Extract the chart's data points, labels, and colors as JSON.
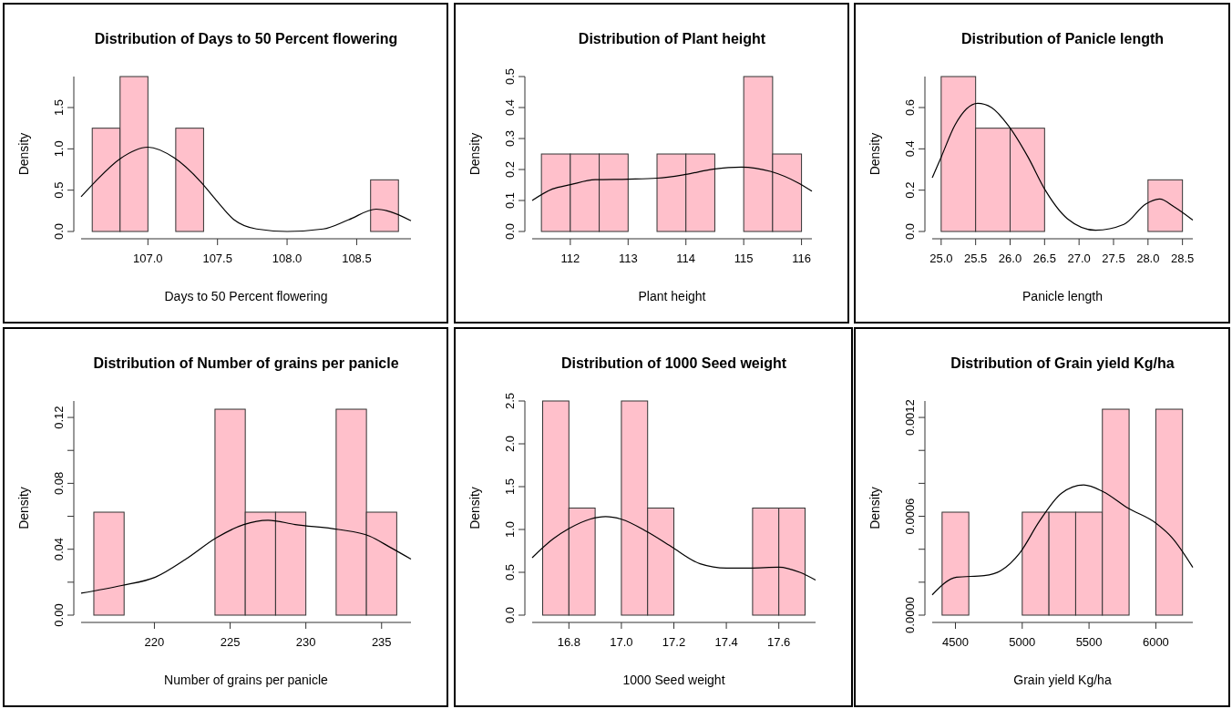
{
  "chart_data": [
    {
      "type": "histogram",
      "title": "Distribution of Days to 50 Percent flowering",
      "xlabel": "Days to 50 Percent flowering",
      "ylabel": "Density",
      "bins": [
        106.6,
        106.8,
        107.0,
        107.2,
        107.4,
        107.6,
        107.8,
        108.0,
        108.2,
        108.4,
        108.6,
        108.8
      ],
      "xlim": [
        106.52,
        108.89
      ],
      "ylim": [
        0,
        1.875
      ],
      "xticks": [
        {
          "value": 107,
          "label": "107.0"
        },
        107.5,
        {
          "value": 108,
          "label": "108.0"
        },
        108.5
      ],
      "yticks": [
        {
          "value": 0,
          "label": "0.0"
        },
        0.5,
        {
          "value": 1,
          "label": "1.0"
        },
        1.5
      ],
      "series": [
        {
          "color": "#ffc0cb",
          "values": [
            1.25,
            1.875,
            0,
            1.25,
            0,
            0,
            0,
            0,
            0,
            0,
            0.625
          ]
        },
        {
          "type": "line",
          "color": "#000000",
          "x": [
            106.52,
            106.62,
            106.8,
            107.0,
            107.19,
            107.38,
            107.49,
            107.62,
            107.78,
            108.0,
            108.26,
            108.44,
            108.64,
            108.72,
            108.89
          ],
          "values": [
            0.42,
            0.6,
            0.88,
            1.02,
            0.89,
            0.6,
            0.38,
            0.14,
            0.03,
            0.0,
            0.03,
            0.14,
            0.27,
            0.25,
            0.13
          ]
        }
      ]
    },
    {
      "type": "histogram",
      "title": "Distribution of Plant height",
      "xlabel": "Plant height",
      "ylabel": "Density",
      "bins": [
        111.5,
        112,
        112.5,
        113,
        113.5,
        114,
        114.5,
        115,
        115.5,
        116
      ],
      "xlim": [
        111.34,
        116.18
      ],
      "ylim": [
        0,
        0.5
      ],
      "xticks": [
        112,
        113,
        114,
        115,
        116
      ],
      "yticks": [
        {
          "value": 0,
          "label": "0.0"
        },
        0.1,
        0.2,
        0.3,
        0.4,
        0.5
      ],
      "series": [
        {
          "color": "#ffc0cb",
          "values": [
            0.25,
            0.25,
            0.25,
            0,
            0.25,
            0.25,
            0,
            0.5,
            0.25
          ]
        },
        {
          "type": "line",
          "color": "#000000",
          "x": [
            111.34,
            111.69,
            112,
            112.43,
            113,
            113.5,
            113.99,
            114.47,
            114.96,
            115.46,
            115.95,
            116.18
          ],
          "values": [
            0.1,
            0.137,
            0.151,
            0.167,
            0.169,
            0.172,
            0.184,
            0.201,
            0.208,
            0.194,
            0.156,
            0.13
          ]
        }
      ]
    },
    {
      "type": "histogram",
      "title": "Distribution of Panicle length",
      "xlabel": "Panicle length",
      "ylabel": "Density",
      "bins": [
        25,
        25.5,
        26,
        26.5,
        27,
        27.5,
        28,
        28.5
      ],
      "xlim": [
        24.87,
        28.65
      ],
      "ylim": [
        0,
        0.75
      ],
      "xticks": [
        {
          "value": 25,
          "label": "25.0"
        },
        25.5,
        {
          "value": 26,
          "label": "26.0"
        },
        26.5,
        {
          "value": 27,
          "label": "27.0"
        },
        27.5,
        {
          "value": 28,
          "label": "28.0"
        },
        28.5
      ],
      "yticks": [
        {
          "value": 0,
          "label": "0.0"
        },
        0.2,
        0.4,
        0.6
      ],
      "series": [
        {
          "color": "#ffc0cb",
          "values": [
            0.75,
            0.5,
            0.5,
            0,
            0,
            0,
            0.25
          ]
        },
        {
          "type": "line",
          "color": "#000000",
          "x": [
            24.87,
            25.0,
            25.2,
            25.53,
            25.73,
            25.98,
            26.26,
            26.51,
            26.83,
            27.24,
            27.65,
            27.97,
            28.17,
            28.38,
            28.65
          ],
          "values": [
            0.26,
            0.36,
            0.515,
            0.62,
            0.6,
            0.51,
            0.36,
            0.2,
            0.062,
            0.006,
            0.034,
            0.133,
            0.157,
            0.119,
            0.055
          ]
        }
      ]
    },
    {
      "type": "histogram",
      "title": "Distribution of Number of grains per panicle",
      "xlabel": "Number of grains per panicle",
      "ylabel": "Density",
      "bins": [
        216,
        218,
        220,
        222,
        224,
        226,
        228,
        230,
        232,
        234,
        236
      ],
      "xlim": [
        215.16,
        236.94
      ],
      "ylim": [
        0,
        0.13
      ],
      "xticks": [
        220,
        225,
        230,
        235
      ],
      "yticks": [
        {
          "value": 0,
          "label": "0.00"
        },
        {
          "value": 0.02,
          "label": null
        },
        0.04,
        {
          "value": 0.06,
          "label": null
        },
        0.08,
        {
          "value": 0.1,
          "label": null
        },
        0.12
      ],
      "series": [
        {
          "color": "#ffc0cb",
          "values": [
            0.0625,
            0,
            0,
            0,
            0.125,
            0.0625,
            0.0625,
            0,
            0.125,
            0.0625
          ]
        },
        {
          "type": "line",
          "color": "#000000",
          "x": [
            215.16,
            217.84,
            220.06,
            222.08,
            224.1,
            225.9,
            227.5,
            229.3,
            232.16,
            234.2,
            235.6,
            236.94
          ],
          "values": [
            0.0133,
            0.018,
            0.023,
            0.034,
            0.047,
            0.055,
            0.0576,
            0.055,
            0.052,
            0.048,
            0.041,
            0.034
          ]
        }
      ]
    },
    {
      "type": "histogram",
      "title": "Distribution of 1000 Seed weight",
      "xlabel": "1000 Seed weight",
      "ylabel": "Density",
      "bins": [
        16.7,
        16.8,
        16.9,
        17.0,
        17.1,
        17.2,
        17.3,
        17.4,
        17.5,
        17.6,
        17.7
      ],
      "xlim": [
        16.66,
        17.74
      ],
      "ylim": [
        0,
        2.5
      ],
      "xticks": [
        16.8,
        {
          "value": 17,
          "label": "17.0"
        },
        17.2,
        17.4,
        17.6
      ],
      "yticks": [
        {
          "value": 0,
          "label": "0.0"
        },
        0.5,
        {
          "value": 1,
          "label": "1.0"
        },
        1.5,
        {
          "value": 2,
          "label": "2.0"
        },
        2.5
      ],
      "series": [
        {
          "color": "#ffc0cb",
          "values": [
            2.5,
            1.25,
            0,
            2.5,
            1.25,
            0,
            0,
            0,
            1.25,
            1.25
          ]
        },
        {
          "type": "line",
          "color": "#000000",
          "x": [
            16.66,
            16.74,
            16.8,
            16.88,
            16.94,
            17.0,
            17.1,
            17.19,
            17.3,
            17.4,
            17.49,
            17.6,
            17.68,
            17.74
          ],
          "values": [
            0.67,
            0.89,
            1.01,
            1.12,
            1.15,
            1.12,
            0.97,
            0.8,
            0.6,
            0.55,
            0.55,
            0.56,
            0.5,
            0.41
          ]
        }
      ]
    },
    {
      "type": "histogram",
      "title": "Distribution of Grain yield Kg/ha",
      "xlabel": "Grain yield Kg/ha",
      "ylabel": "Density",
      "bins": [
        4400,
        4600,
        4800,
        5000,
        5200,
        5400,
        5600,
        5800,
        6000,
        6200
      ],
      "xlim": [
        4326,
        6277
      ],
      "ylim": [
        0,
        0.0013
      ],
      "xticks": [
        4500,
        5000,
        5500,
        6000
      ],
      "yticks": [
        {
          "value": 0,
          "label": "0.0000"
        },
        {
          "value": 0.0002,
          "label": null
        },
        {
          "value": 0.0004,
          "label": null
        },
        {
          "value": 0.0006,
          "label": "0.0006"
        },
        {
          "value": 0.0008,
          "label": null
        },
        {
          "value": 0.001,
          "label": null
        },
        {
          "value": 0.0012,
          "label": "0.0012"
        }
      ],
      "series": [
        {
          "color": "#ffc0cb",
          "values": [
            0.000625,
            0,
            0,
            0.000625,
            0.000625,
            0.000625,
            0.00125,
            0,
            0.00125
          ]
        },
        {
          "type": "line",
          "color": "#000000",
          "x": [
            4326,
            4508,
            4715,
            4839,
            4984,
            5129,
            5294,
            5460,
            5605,
            5791,
            5998,
            6122,
            6277
          ],
          "values": [
            0.000123,
            0.00023,
            0.00024,
            0.00027,
            0.00038,
            0.00057,
            0.00074,
            0.00079,
            0.00075,
            0.00065,
            0.00056,
            0.00047,
            0.00029
          ]
        }
      ]
    }
  ]
}
